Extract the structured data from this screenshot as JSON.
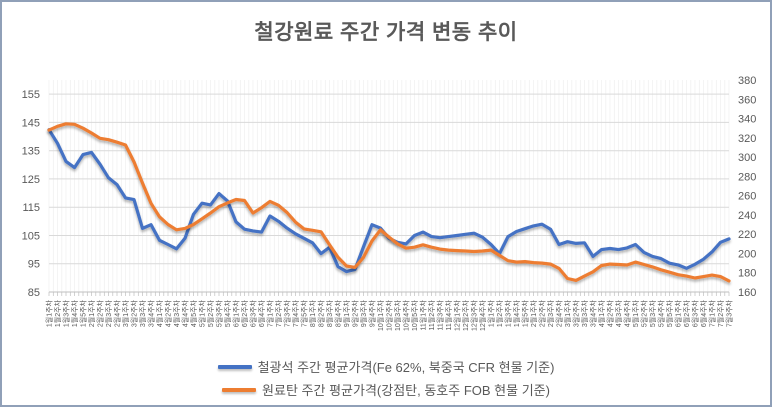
{
  "title": "철강원료 주간 가격 변동 추이",
  "colors": {
    "series_blue": "#4472C4",
    "series_orange": "#ED7D31",
    "text": "#595959",
    "grid_major": "#D9D9D9",
    "grid_minor": "#EFEFEF",
    "axis_line": "#BFBFBF"
  },
  "legend": [
    {
      "label": "철광석 주간 평균가격(Fe 62%, 북중국 CFR 현물 기준)",
      "color": "#4472C4"
    },
    {
      "label": "원료탄 주간 평균가격(강점탄, 동호주 FOB 현물 기준)",
      "color": "#ED7D31"
    }
  ],
  "left_axis": {
    "ticks": [
      155,
      145,
      135,
      125,
      115,
      105,
      95,
      85
    ]
  },
  "right_axis": {
    "ticks": [
      380,
      360,
      340,
      320,
      300,
      280,
      260,
      240,
      220,
      200,
      180,
      160
    ]
  },
  "chart_data": {
    "type": "line",
    "title": "철강원료 주간 가격 변동 추이",
    "xlabel": "",
    "ylabel_left": "",
    "ylabel_right": "",
    "grid": true,
    "legend_position": "bottom",
    "left_ylim": [
      85,
      160
    ],
    "right_ylim": [
      160,
      380
    ],
    "categories": [
      "1월1주차",
      "1월2주차",
      "1월3주차",
      "1월4주차",
      "1월5주차",
      "2월1주차",
      "2월2주차",
      "2월3주차",
      "2월4주차",
      "3월1주차",
      "3월2주차",
      "3월3주차",
      "3월4주차",
      "4월1주차",
      "4월2주차",
      "4월3주차",
      "4월4주차",
      "4월5주차",
      "5월1주차",
      "5월2주차",
      "5월3주차",
      "5월4주차",
      "6월1주차",
      "6월2주차",
      "6월3주차",
      "6월4주차",
      "7월1주차",
      "7월2주차",
      "7월3주차",
      "7월4주차",
      "7월5주차",
      "8월1주차",
      "8월2주차",
      "8월3주차",
      "8월4주차",
      "9월1주차",
      "9월2주차",
      "9월3주차",
      "9월4주차",
      "10월1주차",
      "10월2주차",
      "10월3주차",
      "10월4주차",
      "10월5주차",
      "11월1주차",
      "11월2주차",
      "11월3주차",
      "11월4주차",
      "12월1주차",
      "12월2주차",
      "12월3주차",
      "12월4주차",
      "1월1주차",
      "1월2주차",
      "1월3주차",
      "1월4주차",
      "1월5주차",
      "2월1주차",
      "2월2주차",
      "2월3주차",
      "2월4주차",
      "3월1주차",
      "3월2주차",
      "3월3주차",
      "3월4주차",
      "4월1주차",
      "4월2주차",
      "4월3주차",
      "4월4주차",
      "5월1주차",
      "5월2주차",
      "5월3주차",
      "5월4주차",
      "5월5주차",
      "6월1주차",
      "6월2주차",
      "6월3주차",
      "6월4주차",
      "7월1주차",
      "7월2주차",
      "7월3주차"
    ],
    "series": [
      {
        "name": "철광석 주간 평균가격(Fe 62%, 북중국 CFR 현물 기준)",
        "axis": "left",
        "color": "#4472C4",
        "values": [
          142.4,
          137.6,
          131.2,
          129.0,
          133.6,
          134.4,
          130.2,
          125.4,
          123.0,
          118.3,
          117.7,
          107.5,
          108.8,
          103.3,
          101.8,
          100.3,
          104.0,
          112.5,
          116.4,
          115.8,
          119.8,
          117.2,
          109.8,
          107.2,
          106.6,
          106.2,
          111.9,
          110.0,
          107.6,
          105.6,
          104.0,
          102.4,
          98.6,
          100.8,
          94.0,
          92.2,
          93.0,
          101.0,
          108.8,
          107.6,
          104.0,
          102.6,
          102.0,
          105.0,
          106.2,
          104.6,
          104.2,
          104.6,
          105.0,
          105.4,
          105.8,
          104.4,
          101.8,
          98.6,
          104.6,
          106.4,
          107.4,
          108.4,
          109.0,
          107.2,
          101.8,
          102.8,
          102.2,
          102.4,
          97.6,
          100.0,
          100.4,
          100.0,
          100.6,
          101.8,
          99.0,
          97.6,
          96.8,
          95.2,
          94.6,
          93.4,
          94.8,
          96.6,
          99.2,
          102.6,
          103.8
        ]
      },
      {
        "name": "원료탄 주간 평균가격(강점탄, 동호주 FOB 현물 기준)",
        "axis": "right",
        "color": "#ED7D31",
        "values": [
          328,
          332,
          334.5,
          334,
          330,
          325,
          319.5,
          318,
          315.5,
          312.5,
          295,
          273,
          252,
          238,
          230,
          224.5,
          226,
          230,
          236,
          242,
          248.5,
          252.5,
          256,
          255,
          242,
          247.5,
          254,
          250,
          242.5,
          232.5,
          225.5,
          224,
          222.5,
          209,
          196,
          187,
          185.5,
          196,
          213,
          224.5,
          217,
          210,
          205.5,
          206.5,
          209,
          206.5,
          204.5,
          203.5,
          203,
          202.5,
          202,
          202.5,
          203.5,
          198,
          192.5,
          191,
          191.5,
          190.5,
          190,
          189,
          184.5,
          174,
          172,
          176.5,
          181,
          187.5,
          189,
          188.5,
          188,
          191,
          188.5,
          186,
          183,
          180.5,
          178,
          176.5,
          174.5,
          176,
          177.5,
          176,
          171.5
        ]
      }
    ]
  }
}
